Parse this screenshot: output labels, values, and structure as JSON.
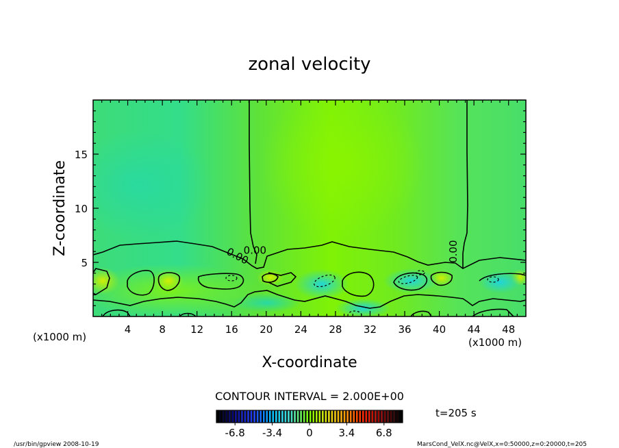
{
  "chart_data": {
    "type": "heatmap",
    "title": "zonal velocity",
    "xlabel": "X-coordinate",
    "ylabel": "Z-coordinate",
    "x_unit_left": "(x1000 m)",
    "x_unit_right": "(x1000 m)",
    "xlim": [
      0,
      50
    ],
    "ylim": [
      0,
      20
    ],
    "x_ticks": [
      4,
      8,
      12,
      16,
      20,
      24,
      28,
      32,
      36,
      40,
      44,
      48
    ],
    "y_ticks": [
      5,
      10,
      15
    ],
    "contour_labels": [
      {
        "text": "0.00",
        "x": 18.7,
        "z": 5.8
      },
      {
        "text": "0.00",
        "x": 16.5,
        "z": 5.3
      },
      {
        "text": "0.00",
        "x": 42.0,
        "z": 6.0
      }
    ],
    "contour_interval_text": "CONTOUR INTERVAL = 2.000E+00",
    "time_label": "t=205 s",
    "colorbar": {
      "ticks": [
        "-6.8",
        "-3.4",
        "0",
        "3.4",
        "6.8"
      ],
      "range": [
        -8.5,
        8.5
      ],
      "colors": [
        "#000000",
        "#00008b",
        "#1e3cff",
        "#00bfff",
        "#40e0d0",
        "#7fff00",
        "#e0e000",
        "#ff9900",
        "#ff2000",
        "#8b0000",
        "#000000"
      ]
    },
    "colors": {
      "field_base": "#44e15d",
      "field_light": "#7cf50a",
      "field_cyan": "#27d9a0",
      "field_yellow": "#bff000",
      "contour": "#000000"
    }
  },
  "footer": {
    "left": "/usr/bin/gpview   2008-10-19",
    "right": "MarsCond_VelX.nc@VelX,x=0:50000,z=0:20000,t=205"
  }
}
